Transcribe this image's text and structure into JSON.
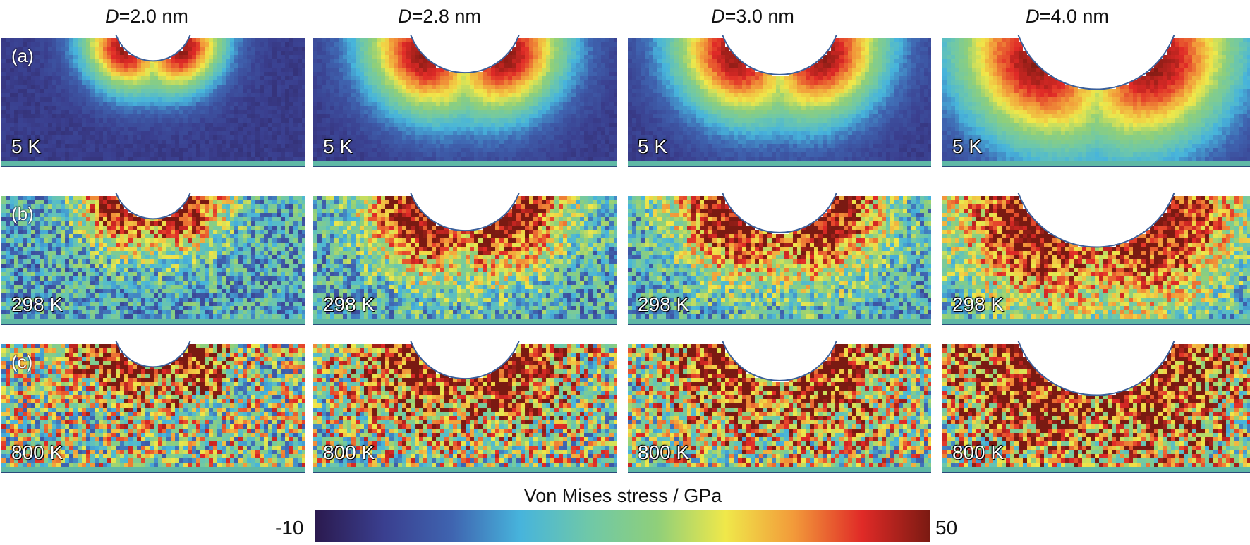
{
  "columns": [
    {
      "title_var": "D",
      "title_rest": "=2.0 nm",
      "radius_frac": 0.13,
      "plastic": 0.3
    },
    {
      "title_var": "D",
      "title_rest": "=2.8 nm",
      "radius_frac": 0.19,
      "plastic": 0.42
    },
    {
      "title_var": "D",
      "title_rest": "=3.0 nm",
      "radius_frac": 0.2,
      "plastic": 0.44
    },
    {
      "title_var": "D",
      "title_rest": "=4.0 nm",
      "radius_frac": 0.27,
      "plastic": 0.56
    }
  ],
  "rows": [
    {
      "label": "(a)",
      "temperature": "5 K",
      "noise": 0.04,
      "base_stress": 0.05
    },
    {
      "label": "(b)",
      "temperature": "298 K",
      "noise": 0.45,
      "base_stress": 0.35
    },
    {
      "label": "(c)",
      "temperature": "800 K",
      "noise": 0.75,
      "base_stress": 0.55
    }
  ],
  "colorbar": {
    "title": "Von Mises stress / GPa",
    "min_label": "-10",
    "max_label": "50",
    "stops": [
      "#2b1a4f",
      "#3a3f8f",
      "#3f64b0",
      "#47b4dc",
      "#6fc8a8",
      "#8fcf7a",
      "#f0e84a",
      "#f29a3a",
      "#e02a27",
      "#7a1a12"
    ]
  }
}
